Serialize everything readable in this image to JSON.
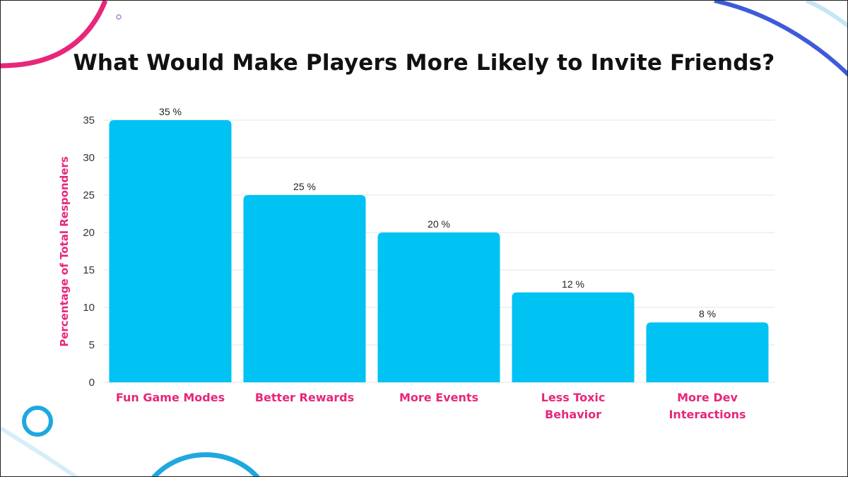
{
  "colors": {
    "bar": "#00c2f3",
    "accent_pink": "#e8267a",
    "accent_blue": "#1fa8e0",
    "grid": "#e6e6e6"
  },
  "chart_data": {
    "type": "bar",
    "title": "What Would Make Players More Likely to Invite Friends?",
    "ylabel": "Percentage of Total Responders",
    "xlabel": "",
    "categories": [
      [
        "Fun Game Modes"
      ],
      [
        "Better Rewards"
      ],
      [
        "More Events"
      ],
      [
        "Less Toxic",
        "Behavior"
      ],
      [
        "More Dev",
        "Interactions"
      ]
    ],
    "values": [
      35,
      25,
      20,
      12,
      8
    ],
    "data_labels": [
      "35 %",
      "25 %",
      "20 %",
      "12 %",
      "8 %"
    ],
    "ylim": [
      0,
      35
    ],
    "yticks": [
      0,
      5,
      10,
      15,
      20,
      25,
      30,
      35
    ],
    "grid": true,
    "legend": "none"
  }
}
